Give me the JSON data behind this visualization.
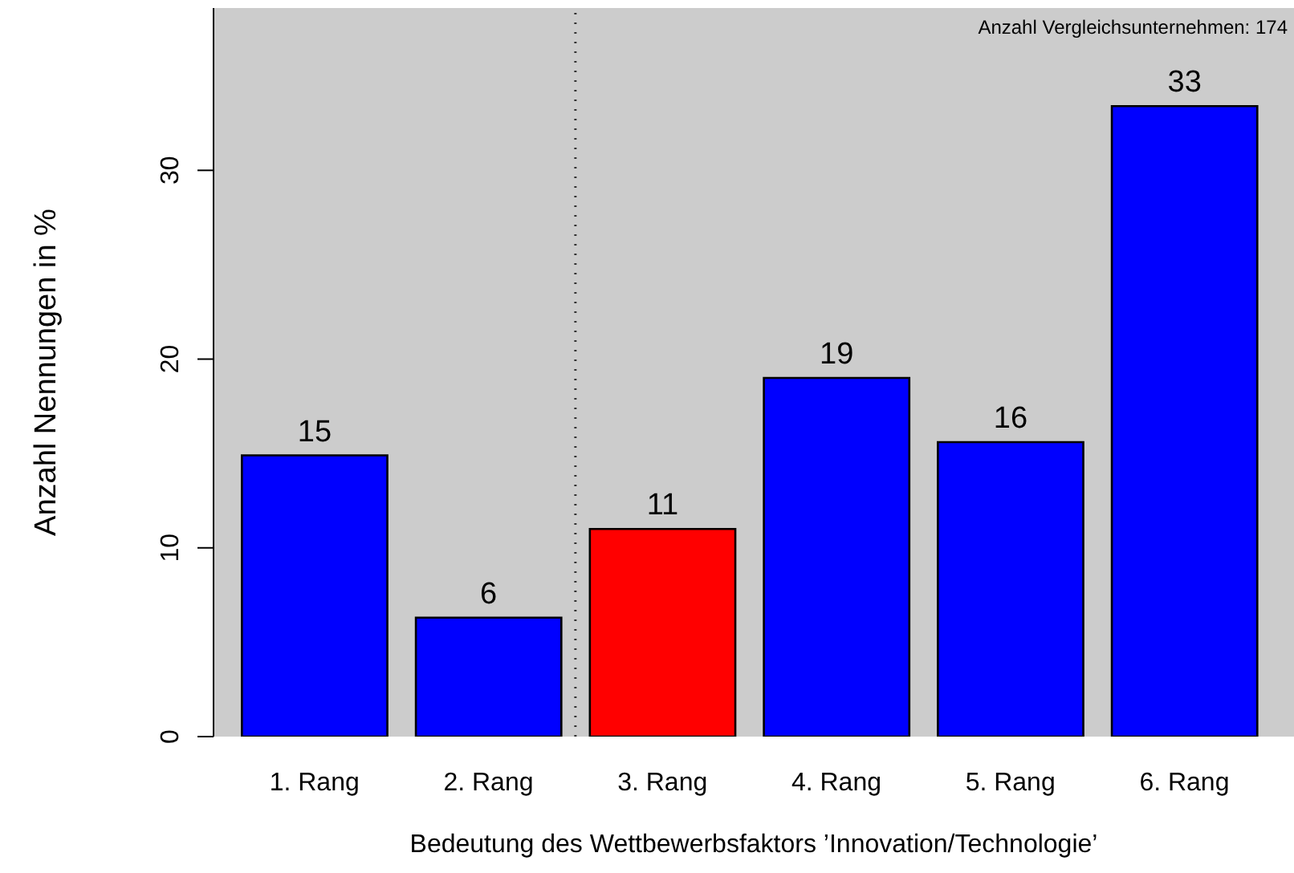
{
  "chart_data": {
    "type": "bar",
    "xlabel": "Bedeutung des Wettbewerbsfaktors ’Innovation/Technologie’",
    "ylabel": "Anzahl Nennungen in %",
    "categories": [
      "1. Rang",
      "2. Rang",
      "3. Rang",
      "4. Rang",
      "5. Rang",
      "6. Rang"
    ],
    "values": [
      14.9,
      6.3,
      11.0,
      19.0,
      15.6,
      33.4
    ],
    "colors": [
      "#0000ff",
      "#0000ff",
      "#ff0000",
      "#0000ff",
      "#0000ff",
      "#0000ff"
    ],
    "value_labels": [
      "15",
      "6",
      "11",
      "19",
      "16",
      "33"
    ],
    "ylim": [
      0,
      38.6
    ],
    "yticks": [
      0,
      10,
      20,
      30
    ],
    "annotations": [
      "Anzahl Vergleichsunternehmen: 174"
    ],
    "grid": false,
    "legend": false
  }
}
